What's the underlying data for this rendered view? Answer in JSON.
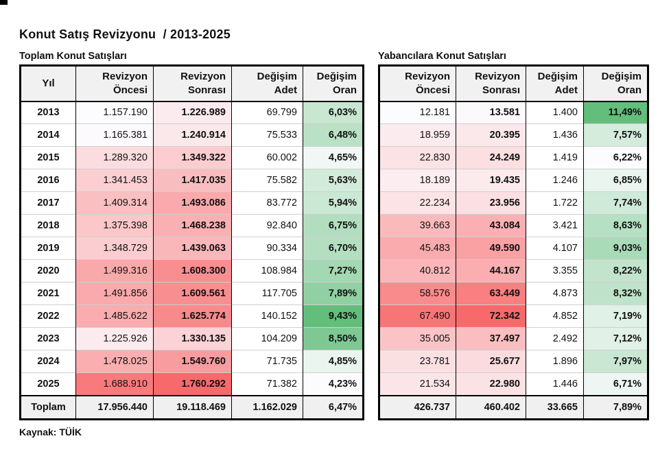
{
  "title": "Konut Satış Revizyonu  / 2013-2025",
  "source": "Kaynak: TÜİK",
  "colors": {
    "scale_white": "#FCFCFF",
    "scale_red": "#F8696B",
    "scale_green": "#63BE7B",
    "header_bg": "#F1F1F1",
    "total_bg": "#F0F0F0",
    "outer_border": "#000000",
    "row_line": "#CFCFCF"
  },
  "chart_data": [
    {
      "type": "table",
      "title": "Toplam Konut Satışları",
      "columns": [
        "Yıl",
        "Revizyon Öncesi",
        "Revizyon Sonrası",
        "Değişim Adet",
        "Değişim Oran"
      ],
      "rows": [
        [
          "2013",
          "1.157.190",
          "1.226.989",
          "69.799",
          "6,03%"
        ],
        [
          "2014",
          "1.165.381",
          "1.240.914",
          "75.533",
          "6,48%"
        ],
        [
          "2015",
          "1.289.320",
          "1.349.322",
          "60.002",
          "4,65%"
        ],
        [
          "2016",
          "1.341.453",
          "1.417.035",
          "75.582",
          "5,63%"
        ],
        [
          "2017",
          "1.409.314",
          "1.493.086",
          "83.772",
          "5,94%"
        ],
        [
          "2018",
          "1.375.398",
          "1.468.238",
          "92.840",
          "6,75%"
        ],
        [
          "2019",
          "1.348.729",
          "1.439.063",
          "90.334",
          "6,70%"
        ],
        [
          "2020",
          "1.499.316",
          "1.608.300",
          "108.984",
          "7,27%"
        ],
        [
          "2021",
          "1.491.856",
          "1.609.561",
          "117.705",
          "7,89%"
        ],
        [
          "2022",
          "1.485.622",
          "1.625.774",
          "140.152",
          "9,43%"
        ],
        [
          "2023",
          "1.225.926",
          "1.330.135",
          "104.209",
          "8,50%"
        ],
        [
          "2024",
          "1.478.025",
          "1.549.760",
          "71.735",
          "4,85%"
        ],
        [
          "2025",
          "1.688.910",
          "1.760.292",
          "71.382",
          "4,23%"
        ],
        [
          "Toplam",
          "17.956.440",
          "19.118.469",
          "1.162.029",
          "6,47%"
        ]
      ],
      "heatmap": {
        "white_to_red_columns": [
          1,
          2
        ],
        "white_to_green_columns": [
          4
        ]
      }
    },
    {
      "type": "table",
      "title": "Yabancılara Konut Satışları",
      "columns": [
        "Revizyon Öncesi",
        "Revizyon Sonrası",
        "Değişim Adet",
        "Değişim Oran"
      ],
      "rows": [
        [
          "12.181",
          "13.581",
          "1.400",
          "11,49%"
        ],
        [
          "18.959",
          "20.395",
          "1.436",
          "7,57%"
        ],
        [
          "22.830",
          "24.249",
          "1.419",
          "6,22%"
        ],
        [
          "18.189",
          "19.435",
          "1.246",
          "6,85%"
        ],
        [
          "22.234",
          "23.956",
          "1.722",
          "7,74%"
        ],
        [
          "39.663",
          "43.084",
          "3.421",
          "8,63%"
        ],
        [
          "45.483",
          "49.590",
          "4.107",
          "9,03%"
        ],
        [
          "40.812",
          "44.167",
          "3.355",
          "8,22%"
        ],
        [
          "58.576",
          "63.449",
          "4.873",
          "8,32%"
        ],
        [
          "67.490",
          "72.342",
          "4.852",
          "7,19%"
        ],
        [
          "35.005",
          "37.497",
          "2.492",
          "7,12%"
        ],
        [
          "23.781",
          "25.677",
          "1.896",
          "7,97%"
        ],
        [
          "21.534",
          "22.980",
          "1.446",
          "6,71%"
        ],
        [
          "426.737",
          "460.402",
          "33.665",
          "7,89%"
        ]
      ],
      "heatmap": {
        "white_to_red_columns": [
          0,
          1
        ],
        "white_to_green_columns": [
          3
        ]
      }
    }
  ]
}
